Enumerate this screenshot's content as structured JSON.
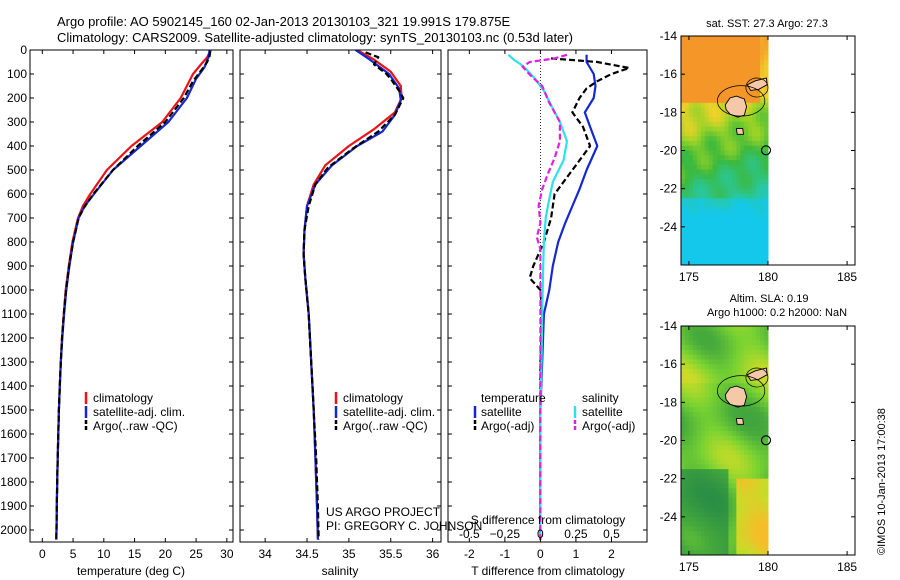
{
  "header": {
    "line1": "Argo profile: AO 5902145_160 02-Jan-2013 20130103_321 19.991S 179.875E",
    "line2": "Climatology: CARS2009. Satellite-adjusted climatology: synTS_20130103.nc (0.53d later)"
  },
  "side_label": "©IMOS 10-Jan-2013 17:00:38",
  "colors": {
    "clim": "#e8141a",
    "sat": "#1428d2",
    "argo": "#000000",
    "sat_s": "#30e0e8",
    "argo_s": "#e020e0"
  },
  "chart_data": [
    {
      "type": "line",
      "id": "temperature",
      "xlabel": "temperature (deg C)",
      "ylabel": "",
      "xlim": [
        -2,
        31
      ],
      "ylim": [
        0,
        2050
      ],
      "y_inverted": true,
      "xticks": [
        0,
        5,
        10,
        15,
        20,
        25,
        30
      ],
      "yticks": [
        0,
        100,
        200,
        300,
        400,
        500,
        600,
        700,
        800,
        900,
        1000,
        1100,
        1200,
        1300,
        1400,
        1500,
        1600,
        1700,
        1800,
        1900,
        2000
      ],
      "legend": [
        "climatology",
        "satellite-adj. clim.",
        "Argo(..raw -QC)"
      ],
      "series": [
        {
          "name": "climatology",
          "style": "solid",
          "color_key": "clim",
          "points": [
            [
              27.4,
              0
            ],
            [
              26.8,
              30
            ],
            [
              25.8,
              60
            ],
            [
              24.5,
              100
            ],
            [
              22.5,
              200
            ],
            [
              19.5,
              300
            ],
            [
              14.5,
              400
            ],
            [
              10.5,
              500
            ],
            [
              7.8,
              600
            ],
            [
              6.6,
              650
            ],
            [
              5.8,
              700
            ],
            [
              4.9,
              800
            ],
            [
              4.3,
              900
            ],
            [
              3.8,
              1000
            ],
            [
              3.5,
              1100
            ],
            [
              3.2,
              1200
            ],
            [
              3.0,
              1300
            ],
            [
              2.85,
              1400
            ],
            [
              2.7,
              1500
            ],
            [
              2.6,
              1600
            ],
            [
              2.5,
              1700
            ],
            [
              2.42,
              1800
            ],
            [
              2.36,
              1900
            ],
            [
              2.3,
              2000
            ],
            [
              2.28,
              2040
            ]
          ]
        },
        {
          "name": "satellite-adj. clim.",
          "style": "solid",
          "color_key": "sat",
          "points": [
            [
              27.2,
              0
            ],
            [
              27.0,
              30
            ],
            [
              26.4,
              70
            ],
            [
              25.0,
              120
            ],
            [
              23.5,
              200
            ],
            [
              20.5,
              300
            ],
            [
              16.0,
              400
            ],
            [
              11.5,
              500
            ],
            [
              8.4,
              600
            ],
            [
              6.9,
              650
            ],
            [
              5.9,
              700
            ],
            [
              5.0,
              800
            ],
            [
              4.4,
              900
            ],
            [
              3.9,
              1000
            ],
            [
              3.55,
              1100
            ],
            [
              3.25,
              1200
            ],
            [
              3.0,
              1300
            ],
            [
              2.85,
              1400
            ],
            [
              2.7,
              1500
            ],
            [
              2.6,
              1600
            ],
            [
              2.5,
              1700
            ],
            [
              2.42,
              1800
            ],
            [
              2.36,
              1900
            ],
            [
              2.3,
              2000
            ],
            [
              2.28,
              2040
            ]
          ]
        },
        {
          "name": "Argo(..raw -QC)",
          "style": "dashed",
          "color_key": "argo",
          "points": [
            [
              27.3,
              5
            ],
            [
              27.2,
              25
            ],
            [
              26.8,
              50
            ],
            [
              26.0,
              80
            ],
            [
              24.5,
              130
            ],
            [
              23.0,
              200
            ],
            [
              20.0,
              300
            ],
            [
              15.5,
              400
            ],
            [
              11.5,
              500
            ],
            [
              8.3,
              600
            ],
            [
              6.7,
              660
            ],
            [
              5.9,
              700
            ],
            [
              5.0,
              800
            ],
            [
              4.35,
              900
            ],
            [
              3.85,
              1000
            ],
            [
              3.5,
              1100
            ],
            [
              3.2,
              1200
            ],
            [
              3.0,
              1300
            ],
            [
              2.85,
              1400
            ],
            [
              2.7,
              1500
            ],
            [
              2.6,
              1600
            ],
            [
              2.5,
              1700
            ],
            [
              2.42,
              1800
            ],
            [
              2.36,
              1900
            ],
            [
              2.3,
              2000
            ],
            [
              2.28,
              2040
            ]
          ]
        }
      ]
    },
    {
      "type": "line",
      "id": "salinity",
      "xlabel": "salinity",
      "xlim": [
        33.7,
        36.1
      ],
      "ylim": [
        0,
        2050
      ],
      "y_inverted": true,
      "xticks": [
        34,
        34.5,
        35,
        35.5,
        36
      ],
      "legend": [
        "climatology",
        "satellite-adj. clim.",
        "Argo(..raw -QC)"
      ],
      "annotation": [
        "US ARGO PROJECT",
        "PI: GREGORY C. JOHNSON"
      ],
      "series": [
        {
          "name": "climatology",
          "style": "solid",
          "color_key": "clim",
          "points": [
            [
              35.1,
              0
            ],
            [
              35.3,
              40
            ],
            [
              35.5,
              90
            ],
            [
              35.62,
              150
            ],
            [
              35.63,
              200
            ],
            [
              35.55,
              260
            ],
            [
              35.3,
              330
            ],
            [
              35.0,
              400
            ],
            [
              34.72,
              480
            ],
            [
              34.58,
              560
            ],
            [
              34.5,
              650
            ],
            [
              34.47,
              750
            ],
            [
              34.46,
              850
            ],
            [
              34.48,
              950
            ],
            [
              34.52,
              1100
            ],
            [
              34.55,
              1300
            ],
            [
              34.58,
              1500
            ],
            [
              34.6,
              1700
            ],
            [
              34.62,
              1900
            ],
            [
              34.63,
              2040
            ]
          ]
        },
        {
          "name": "satellite-adj. clim.",
          "style": "solid",
          "color_key": "sat",
          "points": [
            [
              35.08,
              0
            ],
            [
              35.25,
              40
            ],
            [
              35.48,
              100
            ],
            [
              35.6,
              160
            ],
            [
              35.62,
              210
            ],
            [
              35.55,
              270
            ],
            [
              35.4,
              340
            ],
            [
              35.1,
              400
            ],
            [
              34.8,
              480
            ],
            [
              34.6,
              560
            ],
            [
              34.5,
              650
            ],
            [
              34.47,
              750
            ],
            [
              34.46,
              850
            ],
            [
              34.48,
              950
            ],
            [
              34.52,
              1100
            ],
            [
              34.55,
              1300
            ],
            [
              34.58,
              1500
            ],
            [
              34.6,
              1700
            ],
            [
              34.62,
              1900
            ],
            [
              34.63,
              2040
            ]
          ]
        },
        {
          "name": "Argo(..raw -QC)",
          "style": "dashed",
          "color_key": "argo",
          "points": [
            [
              35.2,
              10
            ],
            [
              35.35,
              30
            ],
            [
              35.3,
              60
            ],
            [
              35.45,
              100
            ],
            [
              35.52,
              130
            ],
            [
              35.6,
              170
            ],
            [
              35.65,
              200
            ],
            [
              35.55,
              270
            ],
            [
              35.35,
              340
            ],
            [
              35.05,
              410
            ],
            [
              34.75,
              490
            ],
            [
              34.6,
              560
            ],
            [
              34.52,
              650
            ],
            [
              34.47,
              750
            ],
            [
              34.46,
              850
            ],
            [
              34.48,
              950
            ],
            [
              34.52,
              1100
            ],
            [
              34.55,
              1300
            ],
            [
              34.58,
              1500
            ],
            [
              34.61,
              1700
            ],
            [
              34.63,
              1900
            ],
            [
              34.64,
              2040
            ]
          ]
        }
      ]
    },
    {
      "type": "line",
      "id": "differences",
      "xlabel": "T difference from climatology",
      "xlabel2": "S difference from climatology",
      "xlim": [
        -2.6,
        3.0
      ],
      "ylim": [
        0,
        2050
      ],
      "y_inverted": true,
      "xticks": [
        -2,
        -1,
        0,
        1,
        2
      ],
      "xticks2": [
        -0.5,
        -0.25,
        0,
        0.25,
        0.5
      ],
      "xtick2_labels": [
        "-0.5",
        "−0.25",
        "0",
        "0.25",
        "0.5"
      ],
      "legend_titles": [
        "temperature",
        "salinity"
      ],
      "legend": [
        "satellite",
        "Argo(-adj)",
        "satellite",
        "Argo(-adj)"
      ],
      "series": [
        {
          "name": "T satellite",
          "style": "solid",
          "color_key": "sat",
          "points": [
            [
              1.3,
              20
            ],
            [
              1.3,
              50
            ],
            [
              1.5,
              100
            ],
            [
              1.55,
              150
            ],
            [
              1.5,
              200
            ],
            [
              1.25,
              260
            ],
            [
              1.4,
              320
            ],
            [
              1.6,
              400
            ],
            [
              1.3,
              500
            ],
            [
              1.1,
              580
            ],
            [
              0.9,
              650
            ],
            [
              0.7,
              720
            ],
            [
              0.5,
              800
            ],
            [
              0.35,
              900
            ],
            [
              0.25,
              1000
            ],
            [
              0.1,
              1100
            ],
            [
              0.05,
              1300
            ],
            [
              0.0,
              1500
            ],
            [
              0.0,
              1700
            ],
            [
              0.0,
              2040
            ]
          ]
        },
        {
          "name": "T Argo(-adj)",
          "style": "dashed",
          "color_key": "argo",
          "points": [
            [
              0.3,
              35
            ],
            [
              1.6,
              50
            ],
            [
              2.5,
              75
            ],
            [
              2.0,
              100
            ],
            [
              1.6,
              130
            ],
            [
              1.3,
              160
            ],
            [
              1.1,
              200
            ],
            [
              0.9,
              260
            ],
            [
              1.2,
              320
            ],
            [
              1.4,
              400
            ],
            [
              0.9,
              500
            ],
            [
              0.4,
              600
            ],
            [
              0.3,
              700
            ],
            [
              0.1,
              800
            ],
            [
              -0.2,
              900
            ],
            [
              -0.3,
              950
            ],
            [
              0.0,
              1000
            ],
            [
              0.05,
              1100
            ],
            [
              0.0,
              1300
            ],
            [
              0.0,
              1500
            ],
            [
              0.0,
              1700
            ],
            [
              0.0,
              2040
            ]
          ]
        },
        {
          "name": "S satellite",
          "style": "solid",
          "color_key": "sat_s",
          "points": [
            [
              -0.9,
              20
            ],
            [
              -0.75,
              40
            ],
            [
              -0.55,
              60
            ],
            [
              -0.4,
              80
            ],
            [
              -0.15,
              120
            ],
            [
              0.1,
              170
            ],
            [
              0.3,
              230
            ],
            [
              0.55,
              300
            ],
            [
              0.75,
              380
            ],
            [
              0.65,
              460
            ],
            [
              0.35,
              550
            ],
            [
              0.25,
              620
            ],
            [
              0.15,
              700
            ],
            [
              0.1,
              800
            ],
            [
              0.08,
              900
            ],
            [
              0.05,
              1100
            ],
            [
              0.03,
              1300
            ],
            [
              0.0,
              1500
            ],
            [
              0.0,
              2040
            ]
          ]
        },
        {
          "name": "S Argo(-adj)",
          "style": "dashed",
          "color_key": "argo_s",
          "points": [
            [
              0.75,
              20
            ],
            [
              0.4,
              35
            ],
            [
              -0.3,
              50
            ],
            [
              -0.5,
              70
            ],
            [
              -0.25,
              110
            ],
            [
              0.05,
              150
            ],
            [
              0.25,
              220
            ],
            [
              0.55,
              300
            ],
            [
              0.55,
              380
            ],
            [
              0.4,
              450
            ],
            [
              0.2,
              520
            ],
            [
              0.05,
              580
            ],
            [
              -0.05,
              650
            ],
            [
              0.0,
              720
            ],
            [
              -0.1,
              780
            ],
            [
              0.0,
              830
            ],
            [
              0.0,
              900
            ],
            [
              0.0,
              2040
            ]
          ]
        }
      ]
    },
    {
      "type": "heatmap",
      "id": "map_sst",
      "title": "sat. SST: 27.3  Argo: 27.3",
      "xlim": [
        174.5,
        185.5
      ],
      "ylim": [
        -26,
        -14
      ],
      "xticks": [
        175,
        180,
        185
      ],
      "yticks": [
        -24,
        -22,
        -20,
        -18,
        -16,
        -14
      ],
      "argo_position": [
        179.875,
        -19.991
      ]
    },
    {
      "type": "heatmap",
      "id": "map_sla",
      "title": "Altim. SLA: 0.19",
      "subtitle": "Argo h1000: 0.2 h2000: NaN",
      "xlim": [
        174.5,
        185.5
      ],
      "ylim": [
        -26,
        -14
      ],
      "xticks": [
        175,
        180,
        185
      ],
      "yticks": [
        -24,
        -22,
        -20,
        -18,
        -16,
        -14
      ],
      "argo_position": [
        179.875,
        -19.991
      ]
    }
  ]
}
